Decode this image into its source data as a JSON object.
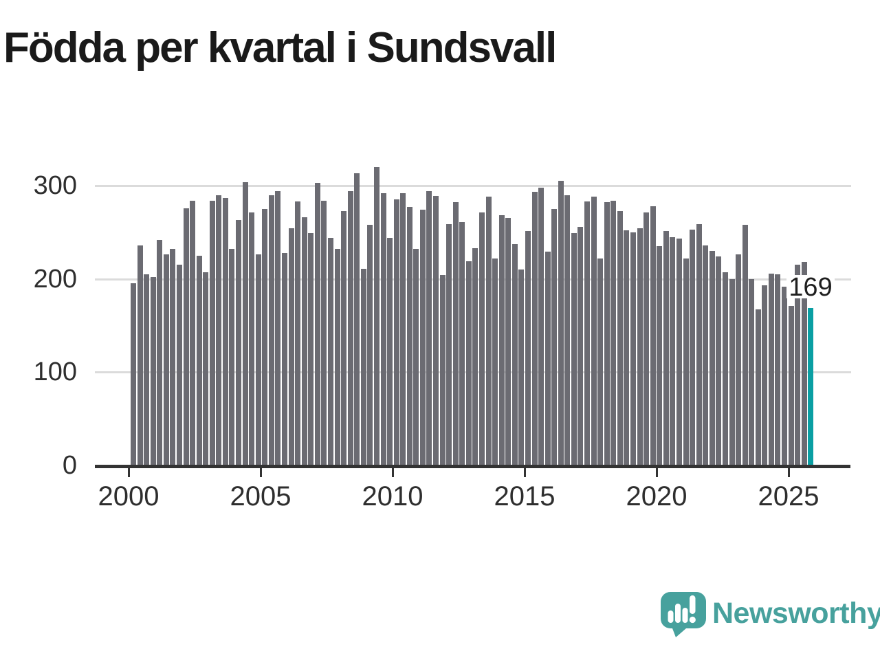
{
  "title": "Födda per kvartal i Sundsvall",
  "chart_data": {
    "type": "bar",
    "title": "Födda per kvartal i Sundsvall",
    "x_start": "2000 Q1",
    "x_end": "2025 Q4",
    "quarters_per_year": 4,
    "values": [
      195,
      236,
      205,
      202,
      242,
      226,
      232,
      215,
      276,
      284,
      225,
      207,
      284,
      290,
      287,
      232,
      263,
      304,
      271,
      226,
      275,
      290,
      294,
      228,
      254,
      283,
      266,
      249,
      303,
      284,
      244,
      232,
      273,
      294,
      313,
      211,
      258,
      320,
      292,
      244,
      285,
      292,
      277,
      232,
      274,
      294,
      289,
      204,
      259,
      282,
      261,
      219,
      233,
      271,
      288,
      222,
      268,
      265,
      237,
      210,
      251,
      293,
      298,
      229,
      275,
      305,
      290,
      249,
      256,
      283,
      288,
      222,
      282,
      284,
      273,
      252,
      250,
      254,
      271,
      278,
      235,
      251,
      245,
      243,
      222,
      253,
      259,
      236,
      230,
      224,
      207,
      200,
      226,
      258,
      200,
      167,
      193,
      206,
      205,
      192,
      171,
      215,
      218,
      169
    ],
    "highlight_last": {
      "value": 169,
      "label": "169"
    },
    "ylim": [
      0,
      340
    ],
    "y_ticks": [
      0,
      100,
      200,
      300
    ],
    "x_tick_labels": [
      "2000",
      "2005",
      "2010",
      "2015",
      "2020",
      "2025"
    ],
    "grid": "horizontal-only",
    "legend": "none"
  },
  "y_axis": {
    "ticks": [
      "0",
      "100",
      "200",
      "300"
    ]
  },
  "x_axis": {
    "ticks": [
      "2000",
      "2005",
      "2010",
      "2015",
      "2020",
      "2025"
    ]
  },
  "annotation": {
    "last_value_label": "169"
  },
  "logo": {
    "name": "Newsworthy",
    "icon": "newsworthy-speech-bubble-barchart-icon"
  },
  "colors": {
    "bar": "#6B6B72",
    "highlight": "#0A9FA3",
    "axis": "#333333",
    "grid": "#DBDBDB",
    "label": "#2E2E2E",
    "title": "#1A1A1A",
    "logo_teal": "#47A19D",
    "background": "#FFFFFF"
  }
}
